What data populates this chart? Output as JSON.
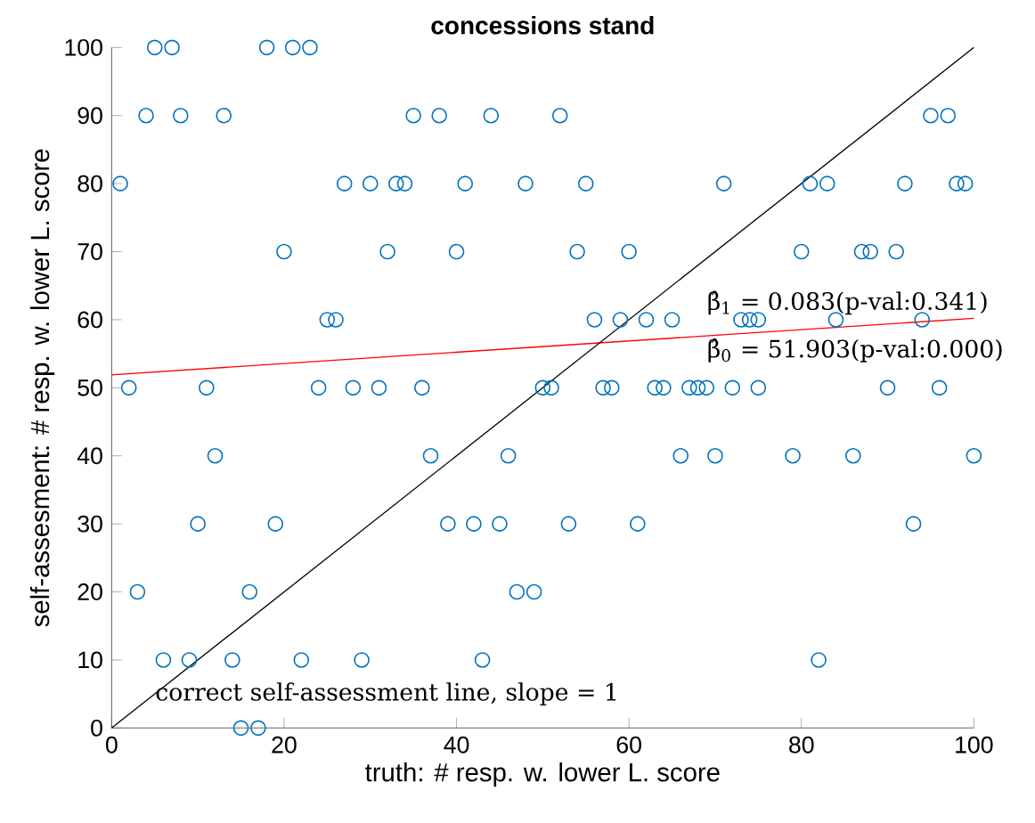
{
  "chart_data": {
    "type": "scatter",
    "title": "concessions stand",
    "xlabel": "truth: # resp. w. lower L. score",
    "ylabel": "self-assesment: # resp. w. lower L. score",
    "xlim": [
      0,
      100
    ],
    "ylim": [
      0,
      100
    ],
    "xticks": [
      0,
      20,
      40,
      60,
      80,
      100
    ],
    "yticks": [
      0,
      10,
      20,
      30,
      40,
      50,
      60,
      70,
      80,
      90,
      100
    ],
    "grid": false,
    "marker": "circle",
    "series": [
      {
        "color": "#0072bd",
        "x": [
          5,
          7,
          18,
          21,
          23,
          4,
          8,
          13,
          35,
          38,
          44,
          52,
          95,
          97,
          1,
          27,
          30,
          33,
          34,
          41,
          48,
          55,
          71,
          81,
          83,
          92,
          98,
          99,
          20,
          32,
          40,
          54,
          60,
          80,
          87,
          88,
          91,
          25,
          26,
          56,
          59,
          62,
          65,
          73,
          74,
          75,
          84,
          94,
          2,
          11,
          24,
          28,
          31,
          36,
          50,
          51,
          57,
          58,
          63,
          64,
          67,
          68,
          69,
          72,
          75,
          90,
          96,
          12,
          37,
          46,
          66,
          70,
          79,
          86,
          100,
          10,
          19,
          39,
          42,
          45,
          53,
          61,
          93,
          3,
          16,
          47,
          49,
          6,
          9,
          14,
          22,
          29,
          43,
          82,
          15,
          17
        ],
        "values": [
          100,
          100,
          100,
          100,
          100,
          90,
          90,
          90,
          90,
          90,
          90,
          90,
          90,
          90,
          80,
          80,
          80,
          80,
          80,
          80,
          80,
          80,
          80,
          80,
          80,
          80,
          80,
          80,
          70,
          70,
          70,
          70,
          70,
          70,
          70,
          70,
          70,
          60,
          60,
          60,
          60,
          60,
          60,
          60,
          60,
          60,
          60,
          60,
          50,
          50,
          50,
          50,
          50,
          50,
          50,
          50,
          50,
          50,
          50,
          50,
          50,
          50,
          50,
          50,
          50,
          50,
          50,
          40,
          40,
          40,
          40,
          40,
          40,
          40,
          40,
          30,
          30,
          30,
          30,
          30,
          30,
          30,
          30,
          20,
          20,
          20,
          20,
          10,
          10,
          10,
          10,
          10,
          10,
          10,
          0,
          0
        ]
      },
      {
        "type": "line",
        "color": "#ff0000",
        "marker": "none",
        "x": [
          0,
          100
        ],
        "values": [
          51.9,
          60.2
        ]
      },
      {
        "type": "line",
        "color": "#000000",
        "marker": "none",
        "x": [
          0,
          100
        ],
        "values": [
          0,
          100
        ]
      }
    ],
    "annotations": [
      "β̂$_{1}$ = 0.083(p-val:0.341)",
      "β̂$_{0}$ = 51.903(p-val:0.000)",
      {
        "text": "correct self-assessment line, slope = 1",
        "x": 5,
        "y": 5
      }
    ]
  }
}
